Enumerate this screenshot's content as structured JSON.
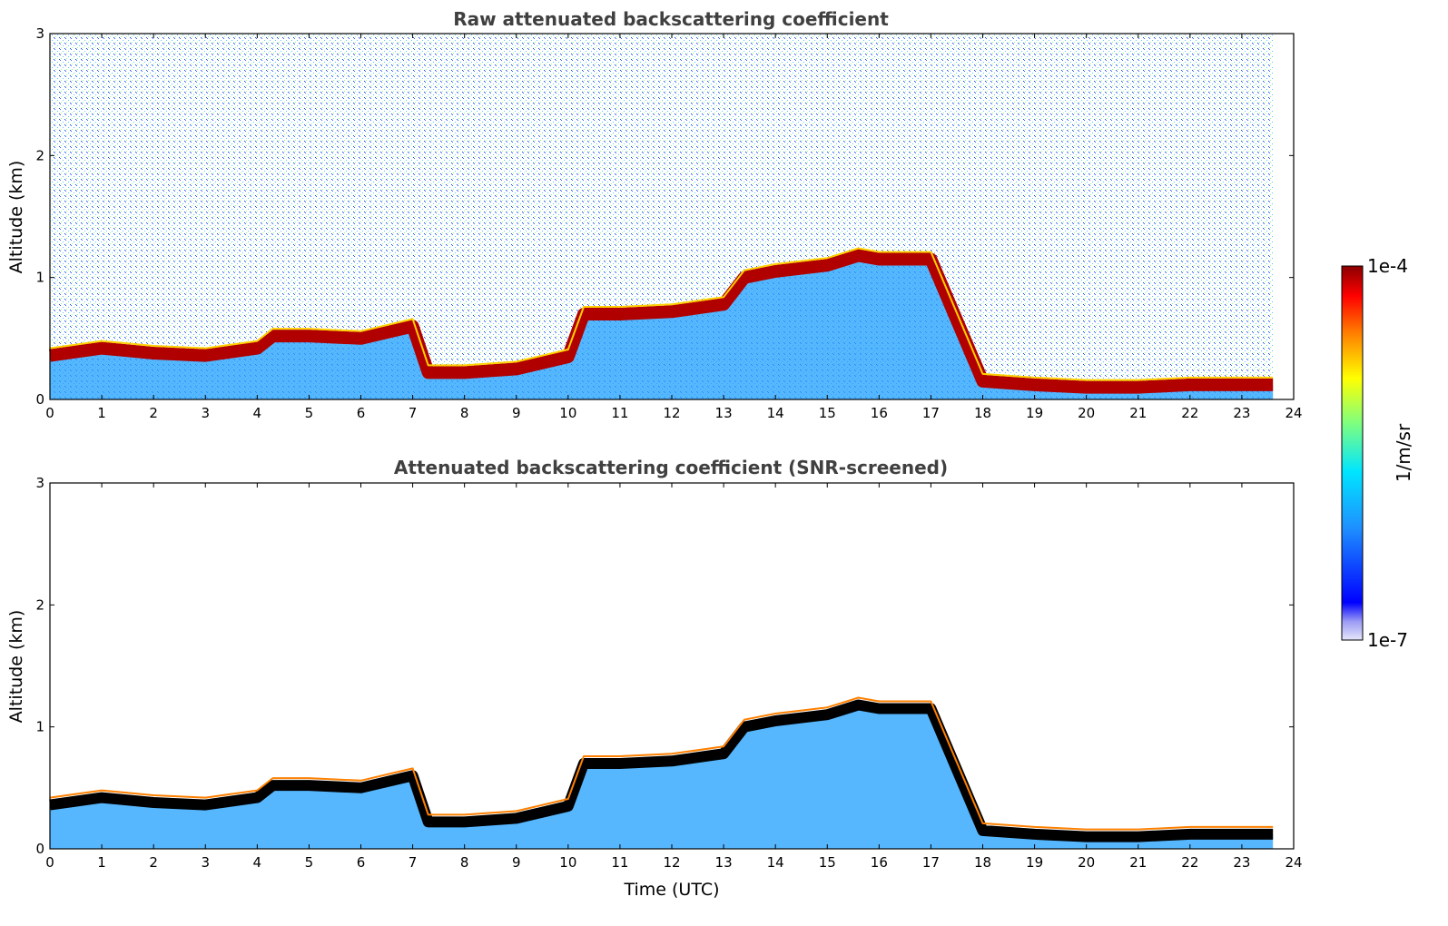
{
  "chart_data": [
    {
      "type": "heatmap",
      "title": "Raw attenuated backscattering coefficient",
      "xlabel": "",
      "ylabel": "Altitude (km)",
      "xlim": [
        0,
        24
      ],
      "ylim": [
        0,
        3
      ],
      "xticks": [
        "0",
        "1",
        "2",
        "3",
        "4",
        "5",
        "6",
        "7",
        "8",
        "9",
        "10",
        "11",
        "12",
        "13",
        "14",
        "15",
        "16",
        "17",
        "18",
        "19",
        "20",
        "21",
        "22",
        "23",
        "24"
      ],
      "yticks": [
        "0",
        "1",
        "2",
        "3"
      ],
      "layer_heights_km": {
        "time_utc": [
          0,
          1,
          2,
          3,
          4,
          4.3,
          5,
          6,
          7,
          7.3,
          8,
          9,
          10,
          10.3,
          11,
          12,
          13,
          13.4,
          14,
          15,
          15.6,
          16,
          17,
          18,
          19,
          20,
          21,
          22,
          23,
          23.6
        ],
        "cloud_base_km": [
          0.36,
          0.42,
          0.38,
          0.36,
          0.42,
          0.52,
          0.52,
          0.5,
          0.6,
          0.22,
          0.22,
          0.25,
          0.35,
          0.7,
          0.7,
          0.72,
          0.78,
          1.0,
          1.05,
          1.1,
          1.18,
          1.15,
          1.15,
          0.15,
          0.12,
          0.1,
          0.1,
          0.12,
          0.12,
          0.12
        ]
      }
    },
    {
      "type": "heatmap",
      "title": "Attenuated backscattering coefficient (SNR-screened)",
      "xlabel": "Time (UTC)",
      "ylabel": "Altitude (km)",
      "xlim": [
        0,
        24
      ],
      "ylim": [
        0,
        3
      ],
      "xticks": [
        "0",
        "1",
        "2",
        "3",
        "4",
        "5",
        "6",
        "7",
        "8",
        "9",
        "10",
        "11",
        "12",
        "13",
        "14",
        "15",
        "16",
        "17",
        "18",
        "19",
        "20",
        "21",
        "22",
        "23",
        "24"
      ],
      "yticks": [
        "0",
        "1",
        "2",
        "3"
      ]
    }
  ],
  "colorbar": {
    "label": "1/m/sr",
    "max_label": "1e-4",
    "min_label": "1e-7",
    "colors": [
      "#e6e6fa",
      "#0000ff",
      "#1e90ff",
      "#00ffff",
      "#7fff7f",
      "#ffff00",
      "#ff7f00",
      "#ff0000",
      "#8b0000"
    ]
  }
}
